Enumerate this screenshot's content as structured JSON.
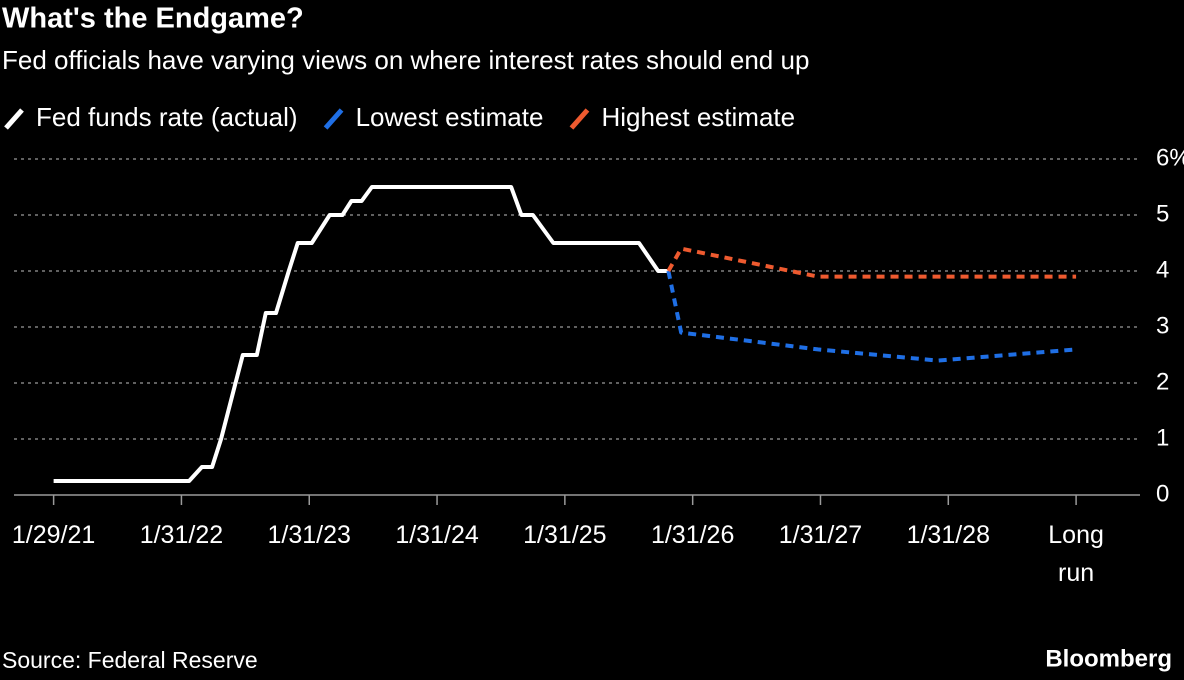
{
  "chart_data": {
    "type": "line",
    "title": "What's the Endgame?",
    "subtitle": "Fed officials have varying views on where interest rates should end up",
    "source": "Source: Federal Reserve",
    "brand": "Bloomberg",
    "xlim": [
      -0.31,
      8.5
    ],
    "xticks": [
      {
        "value": 0,
        "label": "1/29/21"
      },
      {
        "value": 1,
        "label": "1/31/22"
      },
      {
        "value": 2,
        "label": "1/31/23"
      },
      {
        "value": 3,
        "label": "1/31/24"
      },
      {
        "value": 4,
        "label": "1/31/25"
      },
      {
        "value": 5,
        "label": "1/31/26"
      },
      {
        "value": 6,
        "label": "1/31/27"
      },
      {
        "value": 7,
        "label": "1/31/28"
      },
      {
        "value": 8,
        "label": "Long run"
      }
    ],
    "ylim": [
      0,
      6
    ],
    "yticks": [
      0,
      1,
      2,
      3,
      4,
      5,
      {
        "value": 6,
        "label": "6%"
      }
    ],
    "grid": true,
    "series": [
      {
        "name": "Fed funds rate (actual)",
        "color": "#ffffff",
        "dashed": false,
        "x": [
          0,
          1.06,
          1.16,
          1.24,
          1.31,
          1.48,
          1.59,
          1.66,
          1.74,
          1.84,
          1.91,
          2.02,
          2.16,
          2.26,
          2.33,
          2.41,
          2.49,
          3.58,
          3.66,
          3.75,
          3.91,
          4.58,
          4.73,
          4.81
        ],
        "values": [
          0.25,
          0.25,
          0.5,
          0.5,
          1,
          2.5,
          2.5,
          3.25,
          3.25,
          4,
          4.5,
          4.5,
          5,
          5,
          5.25,
          5.25,
          5.5,
          5.5,
          5,
          5,
          4.5,
          4.5,
          4,
          4
        ]
      },
      {
        "name": "Lowest estimate",
        "color": "#1f6fe5",
        "dashed": true,
        "x": [
          4.81,
          4.91,
          5.98,
          6.92,
          8
        ],
        "values": [
          4,
          2.9,
          2.6,
          2.4,
          2.6
        ]
      },
      {
        "name": "Highest estimate",
        "color": "#ee5a2f",
        "dashed": true,
        "x": [
          4.81,
          4.91,
          5.98,
          6.92,
          8
        ],
        "values": [
          4,
          4.4,
          3.9,
          3.9,
          3.9
        ]
      }
    ]
  }
}
